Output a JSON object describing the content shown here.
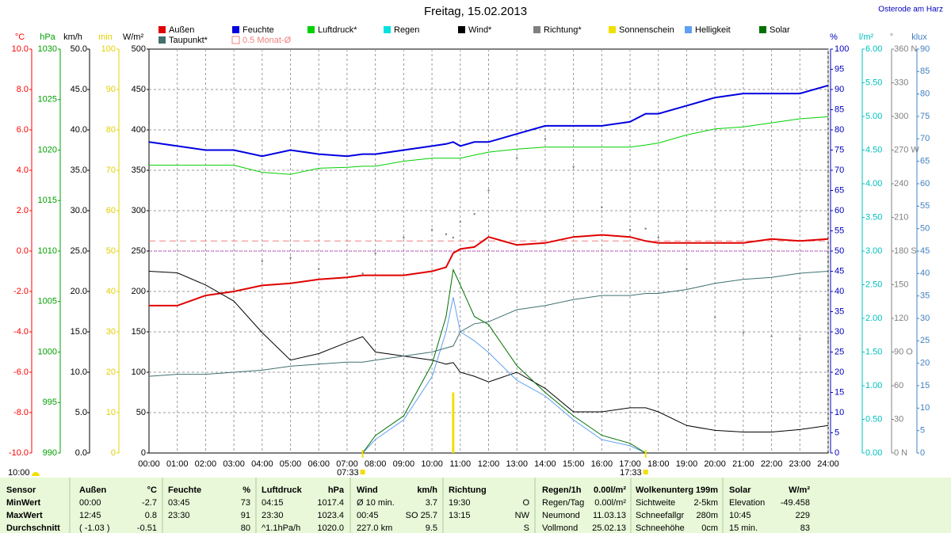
{
  "chart_data": {
    "type": "line",
    "title": "Freitag, 15.02.2013",
    "subtitle": "Osterode am Harz",
    "grid": true,
    "x": [
      0,
      1,
      2,
      3,
      4,
      5,
      6,
      7,
      7.55,
      8,
      9,
      10,
      10.5,
      10.75,
      11,
      11.5,
      12,
      13,
      14,
      15,
      16,
      17,
      17.55,
      18,
      19,
      20,
      21,
      22,
      23,
      24
    ],
    "xlim": [
      0,
      24
    ],
    "xticks": [
      {
        "value": 0,
        "label": "00:00"
      },
      {
        "value": 1,
        "label": "01:00"
      },
      {
        "value": 2,
        "label": "02:00"
      },
      {
        "value": 3,
        "label": "03:00"
      },
      {
        "value": 4,
        "label": "04:00"
      },
      {
        "value": 5,
        "label": "05:00"
      },
      {
        "value": 6,
        "label": "06:00"
      },
      {
        "value": 7,
        "label": "07:00"
      },
      {
        "value": 8,
        "label": "08:00"
      },
      {
        "value": 9,
        "label": "09:00"
      },
      {
        "value": 10,
        "label": "10:00"
      },
      {
        "value": 11,
        "label": "11:00"
      },
      {
        "value": 12,
        "label": "12:00"
      },
      {
        "value": 13,
        "label": "13:00"
      },
      {
        "value": 14,
        "label": "14:00"
      },
      {
        "value": 15,
        "label": "15:00"
      },
      {
        "value": 16,
        "label": "16:00"
      },
      {
        "value": 17,
        "label": "17:00"
      },
      {
        "value": 18,
        "label": "18:00"
      },
      {
        "value": 19,
        "label": "19:00"
      },
      {
        "value": 20,
        "label": "20:00"
      },
      {
        "value": 21,
        "label": "21:00"
      },
      {
        "value": 22,
        "label": "22:00"
      },
      {
        "value": 23,
        "label": "23:00"
      },
      {
        "value": 24,
        "label": "24:00"
      }
    ],
    "axes": [
      {
        "label": "°C",
        "side": "left",
        "color": "#ff0000",
        "lim": [
          -10,
          10
        ],
        "ticks": [
          {
            "value": -10,
            "label": "-10.0"
          },
          {
            "value": -8,
            "label": "-8.0"
          },
          {
            "value": -6,
            "label": "-6.0"
          },
          {
            "value": -4,
            "label": "-4.0"
          },
          {
            "value": -2,
            "label": "-2.0"
          },
          {
            "value": 0,
            "label": "0.0"
          },
          {
            "value": 2,
            "label": "2.0"
          },
          {
            "value": 4,
            "label": "4.0"
          },
          {
            "value": 6,
            "label": "6.0"
          },
          {
            "value": 8,
            "label": "8.0"
          },
          {
            "value": 10,
            "label": "10.0"
          }
        ]
      },
      {
        "label": "hPa",
        "side": "left",
        "color": "#00a000",
        "lim": [
          990,
          1030
        ],
        "ticks": [
          990,
          995,
          1000,
          1005,
          1010,
          1015,
          1020,
          1025,
          1030
        ]
      },
      {
        "label": "km/h",
        "side": "left",
        "color": "#000000",
        "lim": [
          0,
          50
        ],
        "ticks": [
          {
            "value": 0,
            "label": "0.0"
          },
          {
            "value": 5,
            "label": "5.0"
          },
          {
            "value": 10,
            "label": "10.0"
          },
          {
            "value": 15,
            "label": "15.0"
          },
          {
            "value": 20,
            "label": "20.0"
          },
          {
            "value": 25,
            "label": "25.0"
          },
          {
            "value": 30,
            "label": "30.0"
          },
          {
            "value": 35,
            "label": "35.0"
          },
          {
            "value": 40,
            "label": "40.0"
          },
          {
            "value": 45,
            "label": "45.0"
          },
          {
            "value": 50,
            "label": "50.0"
          }
        ]
      },
      {
        "label": "min",
        "side": "left",
        "color": "#e0d000",
        "lim": [
          0,
          100
        ],
        "ticks": [
          0,
          10,
          20,
          30,
          40,
          50,
          60,
          70,
          80,
          90,
          100
        ]
      },
      {
        "label": "W/m²",
        "side": "left",
        "color": "#000000",
        "lim": [
          0,
          500
        ],
        "ticks": [
          0,
          50,
          100,
          150,
          200,
          250,
          300,
          350,
          400,
          450,
          500
        ]
      },
      {
        "label": "%",
        "side": "right",
        "color": "#0000c0",
        "lim": [
          0,
          100
        ],
        "ticks": [
          0,
          5,
          10,
          15,
          20,
          25,
          30,
          35,
          40,
          45,
          50,
          55,
          60,
          65,
          70,
          75,
          80,
          85,
          90,
          95,
          100
        ]
      },
      {
        "label": "l/m²",
        "side": "right",
        "color": "#00c0c0",
        "lim": [
          0,
          6
        ],
        "ticks": [
          {
            "value": 0,
            "label": "0.00"
          },
          {
            "value": 0.5,
            "label": "0.50"
          },
          {
            "value": 1,
            "label": "1.00"
          },
          {
            "value": 1.5,
            "label": "1.50"
          },
          {
            "value": 2,
            "label": "2.00"
          },
          {
            "value": 2.5,
            "label": "2.50"
          },
          {
            "value": 3,
            "label": "3.00"
          },
          {
            "value": 3.5,
            "label": "3.50"
          },
          {
            "value": 4,
            "label": "4.00"
          },
          {
            "value": 4.5,
            "label": "4.50"
          },
          {
            "value": 5,
            "label": "5.00"
          },
          {
            "value": 5.5,
            "label": "5.50"
          },
          {
            "value": 6,
            "label": "6.00"
          }
        ]
      },
      {
        "label": "°",
        "side": "right",
        "color": "#808080",
        "lim": [
          0,
          360
        ],
        "ticks": [
          {
            "value": 0,
            "label": "0 N"
          },
          30,
          60,
          {
            "value": 90,
            "label": "90 O"
          },
          120,
          150,
          {
            "value": 180,
            "label": "180 S"
          },
          210,
          240,
          {
            "value": 270,
            "label": "270 W"
          },
          300,
          330,
          {
            "value": 360,
            "label": "360 N"
          }
        ]
      },
      {
        "label": "klux",
        "side": "right",
        "color": "#4080c0",
        "lim": [
          0,
          90
        ],
        "ticks": [
          0,
          5,
          10,
          15,
          20,
          25,
          30,
          35,
          40,
          45,
          50,
          55,
          60,
          65,
          70,
          75,
          80,
          85,
          90
        ]
      }
    ],
    "series": [
      {
        "name": "Außen",
        "color": "#e00000",
        "axis": "°C",
        "style": "thick",
        "values": [
          -2.7,
          -2.7,
          -2.2,
          -2.0,
          -1.7,
          -1.6,
          -1.4,
          -1.3,
          -1.2,
          -1.2,
          -1.2,
          -1.0,
          -0.8,
          -0.1,
          0.1,
          0.2,
          0.7,
          0.3,
          0.4,
          0.7,
          0.8,
          0.7,
          0.5,
          0.4,
          0.4,
          0.4,
          0.4,
          0.6,
          0.5,
          0.6
        ]
      },
      {
        "name": "Feuchte",
        "color": "#0000e0",
        "axis": "%",
        "style": "thick",
        "values": [
          77,
          76,
          75,
          75,
          73.5,
          75,
          74,
          73.5,
          74,
          74,
          75,
          76,
          76.5,
          77,
          76,
          77,
          77,
          79,
          81,
          81,
          81,
          82,
          84,
          84,
          86,
          88,
          89,
          89,
          89,
          91
        ]
      },
      {
        "name": "Luftdruck*",
        "color": "#00d000",
        "axis": "hPa",
        "style": "line",
        "values": [
          1018.5,
          1018.5,
          1018.5,
          1018.5,
          1017.8,
          1017.6,
          1018.2,
          1018.3,
          1018.4,
          1018.4,
          1018.9,
          1019.2,
          1019.2,
          1019.2,
          1019.2,
          1019.5,
          1019.8,
          1020.1,
          1020.3,
          1020.3,
          1020.3,
          1020.3,
          1020.5,
          1020.7,
          1021.5,
          1022.1,
          1022.3,
          1022.7,
          1023.1,
          1023.3
        ]
      },
      {
        "name": "Regen",
        "color": "#00e0e0",
        "axis": "l/m²",
        "style": "line",
        "values": [
          null,
          null,
          null,
          null,
          null,
          null,
          null,
          null,
          null,
          null,
          null,
          null,
          null,
          null,
          null,
          null,
          null,
          null,
          null,
          null,
          null,
          null,
          null,
          null,
          null,
          null,
          null,
          null,
          null,
          null
        ]
      },
      {
        "name": "Wind*",
        "color": "#000000",
        "axis": "km/h",
        "style": "line",
        "values": [
          22.5,
          22.3,
          20.8,
          18.8,
          14.9,
          11.5,
          12.3,
          13.7,
          14.4,
          12.5,
          12,
          11.5,
          11,
          11.2,
          10,
          9.5,
          8.8,
          10,
          8,
          5.1,
          5.1,
          5.6,
          5.6,
          5.1,
          3.4,
          2.8,
          2.6,
          2.6,
          2.9,
          3.4
        ]
      },
      {
        "name": "Richtung*",
        "color": "#808080",
        "axis": "°",
        "style": "dots",
        "values": [
          null,
          null,
          null,
          146,
          171,
          174,
          164,
          160,
          160,
          178,
          192,
          199,
          195,
          192,
          206,
          213,
          234,
          263,
          280,
          255,
          219,
          199,
          200,
          192,
          164,
          121,
          107,
          104,
          102,
          100
        ]
      },
      {
        "name": "Sonnenschein",
        "color": "#f0e000",
        "axis": "min",
        "style": "bar",
        "values": [
          null,
          null,
          null,
          null,
          null,
          null,
          null,
          null,
          null,
          null,
          null,
          null,
          null,
          15,
          null,
          null,
          null,
          null,
          null,
          null,
          null,
          null,
          null,
          null,
          null,
          null,
          null,
          null,
          null,
          null
        ]
      },
      {
        "name": "Helligkeit",
        "color": "#60a0f0",
        "axis": "klux",
        "style": "line",
        "values": [
          null,
          null,
          null,
          null,
          null,
          null,
          null,
          null,
          0,
          3,
          7.4,
          17,
          27,
          34.7,
          27,
          25,
          22.4,
          16.2,
          12.7,
          7.4,
          3,
          1.6,
          0,
          null,
          null,
          null,
          null,
          null,
          null,
          null
        ]
      },
      {
        "name": "Solar",
        "color": "#007000",
        "axis": "W/m²",
        "style": "line",
        "values": [
          null,
          null,
          null,
          null,
          null,
          null,
          null,
          null,
          0,
          21.6,
          46,
          110,
          169,
          227,
          208,
          169,
          159,
          108,
          75,
          46,
          22,
          12,
          0,
          null,
          null,
          null,
          null,
          null,
          null,
          null
        ]
      },
      {
        "name": "Taupunkt*",
        "color": "#407070",
        "axis": "°C",
        "style": "line",
        "values": [
          -6.2,
          -6.1,
          -6.1,
          -6.0,
          -5.9,
          -5.7,
          -5.6,
          -5.5,
          -5.5,
          -5.4,
          -5.2,
          -5.0,
          -4.8,
          -4.7,
          -4.0,
          -3.6,
          -3.5,
          -2.9,
          -2.7,
          -2.4,
          -2.2,
          -2.2,
          -2.1,
          -2.1,
          -1.9,
          -1.6,
          -1.4,
          -1.3,
          -1.1,
          -1.0
        ]
      }
    ],
    "reference_lines": [
      {
        "name": "0.5 Monat-Ø",
        "color": "#f08080",
        "axis": "°C",
        "value": 0.5
      }
    ],
    "annotations": [
      {
        "x": 7.55,
        "label": "07:33"
      },
      {
        "x": 17.55,
        "label": "17:33"
      }
    ],
    "sun_label": "10:00"
  },
  "table": {
    "rows": [
      [
        "Sensor",
        "Außen",
        "°C",
        "Feuchte",
        "%",
        "Luftdruck",
        "hPa",
        "Wind",
        "km/h",
        "Richtung",
        null,
        "Regen/1h",
        "0.00l/m²",
        "Wolkenunterg",
        "199m",
        "Solar",
        "W/m²"
      ],
      [
        "MinWert",
        "00:00",
        "-2.7",
        "03:45",
        "73",
        "04:15",
        "1017.4",
        "Ø 10 min.",
        "3.7",
        "19:30",
        "O",
        "Regen/Tag",
        "0.00l/m²",
        "Sichtweite",
        "2-5km",
        "Elevation",
        "-49.458"
      ],
      [
        "MaxWert",
        "12:45",
        "0.8",
        "23:30",
        "91",
        "23:30",
        "1023.4",
        "00:45",
        "SO 25.7",
        "13:15",
        "NW",
        "Neumond",
        "11.03.13",
        "Schneefallgr",
        "280m",
        "10:45",
        "229"
      ],
      [
        "Durchschnitt",
        "( -1.03 )",
        "-0.51",
        null,
        "80",
        "^1.1hPa/h",
        "1020.0",
        "227.0 km",
        "9.5",
        null,
        "S",
        "Vollmond",
        "25.02.13",
        "Schneehöhe",
        "0cm",
        "15 min.",
        "83"
      ]
    ]
  }
}
